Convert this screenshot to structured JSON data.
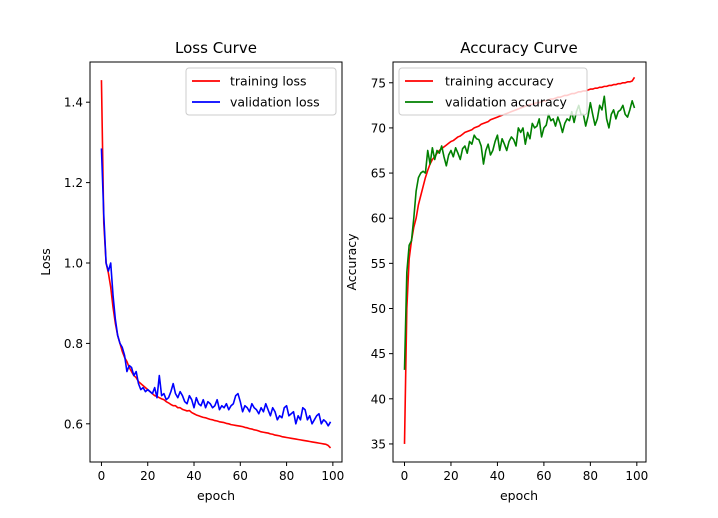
{
  "chart_data": [
    {
      "type": "line",
      "title": "Loss Curve",
      "xlabel": "epoch",
      "ylabel": "Loss",
      "xlim": [
        -4.95,
        103.95
      ],
      "ylim": [
        0.505,
        1.5
      ],
      "xticks": [
        0,
        20,
        40,
        60,
        80,
        100
      ],
      "yticks": [
        0.6,
        0.8,
        1.0,
        1.2,
        1.4
      ],
      "ytick_format": 1,
      "legend_position": "top-right",
      "grid": false,
      "series": [
        {
          "name": "training loss",
          "color": "#ff0000",
          "x_start": 0,
          "values": [
            1.455,
            1.1,
            1.0,
            0.975,
            0.94,
            0.89,
            0.85,
            0.82,
            0.8,
            0.78,
            0.765,
            0.755,
            0.74,
            0.73,
            0.72,
            0.715,
            0.705,
            0.7,
            0.695,
            0.69,
            0.685,
            0.68,
            0.675,
            0.67,
            0.668,
            0.665,
            0.662,
            0.66,
            0.655,
            0.652,
            0.648,
            0.645,
            0.645,
            0.64,
            0.64,
            0.636,
            0.634,
            0.632,
            0.633,
            0.628,
            0.625,
            0.622,
            0.62,
            0.618,
            0.616,
            0.615,
            0.613,
            0.611,
            0.61,
            0.608,
            0.607,
            0.605,
            0.604,
            0.603,
            0.601,
            0.6,
            0.598,
            0.597,
            0.596,
            0.595,
            0.594,
            0.593,
            0.591,
            0.59,
            0.588,
            0.587,
            0.585,
            0.584,
            0.582,
            0.58,
            0.579,
            0.578,
            0.577,
            0.575,
            0.574,
            0.572,
            0.571,
            0.57,
            0.568,
            0.567,
            0.566,
            0.565,
            0.564,
            0.563,
            0.562,
            0.561,
            0.56,
            0.559,
            0.558,
            0.557,
            0.556,
            0.555,
            0.554,
            0.553,
            0.552,
            0.551,
            0.55,
            0.549,
            0.546,
            0.54
          ]
        },
        {
          "name": "validation loss",
          "color": "#0000ff",
          "x_start": 0,
          "values": [
            1.285,
            1.12,
            1.0,
            0.98,
            1.0,
            0.92,
            0.86,
            0.82,
            0.8,
            0.79,
            0.77,
            0.73,
            0.745,
            0.74,
            0.72,
            0.73,
            0.7,
            0.685,
            0.69,
            0.68,
            0.685,
            0.68,
            0.675,
            0.69,
            0.665,
            0.72,
            0.67,
            0.675,
            0.66,
            0.665,
            0.68,
            0.7,
            0.675,
            0.665,
            0.68,
            0.67,
            0.655,
            0.65,
            0.67,
            0.66,
            0.64,
            0.665,
            0.65,
            0.645,
            0.66,
            0.64,
            0.655,
            0.65,
            0.64,
            0.645,
            0.66,
            0.635,
            0.645,
            0.64,
            0.65,
            0.635,
            0.645,
            0.65,
            0.67,
            0.675,
            0.655,
            0.63,
            0.645,
            0.64,
            0.63,
            0.65,
            0.64,
            0.635,
            0.625,
            0.64,
            0.63,
            0.65,
            0.635,
            0.62,
            0.64,
            0.63,
            0.61,
            0.62,
            0.615,
            0.64,
            0.645,
            0.62,
            0.625,
            0.63,
            0.6,
            0.62,
            0.61,
            0.64,
            0.635,
            0.61,
            0.62,
            0.6,
            0.61,
            0.62,
            0.625,
            0.6,
            0.61,
            0.605,
            0.595,
            0.605
          ]
        }
      ]
    },
    {
      "type": "line",
      "title": "Accuracy Curve",
      "xlabel": "epoch",
      "ylabel": "Accuracy",
      "xlim": [
        -4.95,
        103.95
      ],
      "ylim": [
        33.0,
        77.3
      ],
      "xticks": [
        0,
        20,
        40,
        60,
        80,
        100
      ],
      "yticks": [
        35,
        40,
        45,
        50,
        55,
        60,
        65,
        70,
        75
      ],
      "ytick_format": 0,
      "legend_position": "top-left",
      "grid": false,
      "series": [
        {
          "name": "training accuracy",
          "color": "#ff0000",
          "x_start": 0,
          "values": [
            35.0,
            50.0,
            55.5,
            57.5,
            59.0,
            60.0,
            61.5,
            62.5,
            63.5,
            64.5,
            65.3,
            66.0,
            66.5,
            66.8,
            67.2,
            67.5,
            67.7,
            67.9,
            68.1,
            68.3,
            68.5,
            68.6,
            68.8,
            69.0,
            69.1,
            69.3,
            69.5,
            69.6,
            69.7,
            69.8,
            70.0,
            70.1,
            70.2,
            70.4,
            70.5,
            70.6,
            70.7,
            70.9,
            71.0,
            71.1,
            71.2,
            71.3,
            71.4,
            71.5,
            71.6,
            71.7,
            71.8,
            71.9,
            72.0,
            72.1,
            72.2,
            72.3,
            72.4,
            72.5,
            72.6,
            72.6,
            72.7,
            72.8,
            72.8,
            72.9,
            73.0,
            73.0,
            73.1,
            73.2,
            73.2,
            73.3,
            73.4,
            73.4,
            73.5,
            73.6,
            73.6,
            73.7,
            73.8,
            73.8,
            73.9,
            74.0,
            74.0,
            74.1,
            74.1,
            74.2,
            74.3,
            74.3,
            74.4,
            74.4,
            74.5,
            74.5,
            74.6,
            74.6,
            74.7,
            74.7,
            74.8,
            74.8,
            74.9,
            74.9,
            75.0,
            75.0,
            75.1,
            75.1,
            75.2,
            75.6
          ]
        },
        {
          "name": "validation accuracy",
          "color": "#008000",
          "x_start": 0,
          "values": [
            43.2,
            54.0,
            57.0,
            57.5,
            60.0,
            63.0,
            64.5,
            65.0,
            65.2,
            65.0,
            67.5,
            66.0,
            67.8,
            66.5,
            67.5,
            67.2,
            68.0,
            66.8,
            65.8,
            67.0,
            67.5,
            66.8,
            67.8,
            67.2,
            66.5,
            67.7,
            68.0,
            67.2,
            68.5,
            68.2,
            69.2,
            68.8,
            68.7,
            68.0,
            66.0,
            67.5,
            68.2,
            67.0,
            67.5,
            68.5,
            69.2,
            67.5,
            68.8,
            68.2,
            67.5,
            68.5,
            69.0,
            68.7,
            68.0,
            70.0,
            69.5,
            70.0,
            68.2,
            69.5,
            68.8,
            70.5,
            70.0,
            70.2,
            71.0,
            69.0,
            70.0,
            70.3,
            71.5,
            70.8,
            71.0,
            70.2,
            71.2,
            70.5,
            69.5,
            70.5,
            71.0,
            70.8,
            71.8,
            70.6,
            71.8,
            72.5,
            71.5,
            71.5,
            70.2,
            71.3,
            72.8,
            71.5,
            70.3,
            71.0,
            72.5,
            72.0,
            73.5,
            71.0,
            70.0,
            71.5,
            72.0,
            71.0,
            71.8,
            72.0,
            72.5,
            71.5,
            71.2,
            72.0,
            73.0,
            72.2
          ]
        }
      ]
    }
  ]
}
